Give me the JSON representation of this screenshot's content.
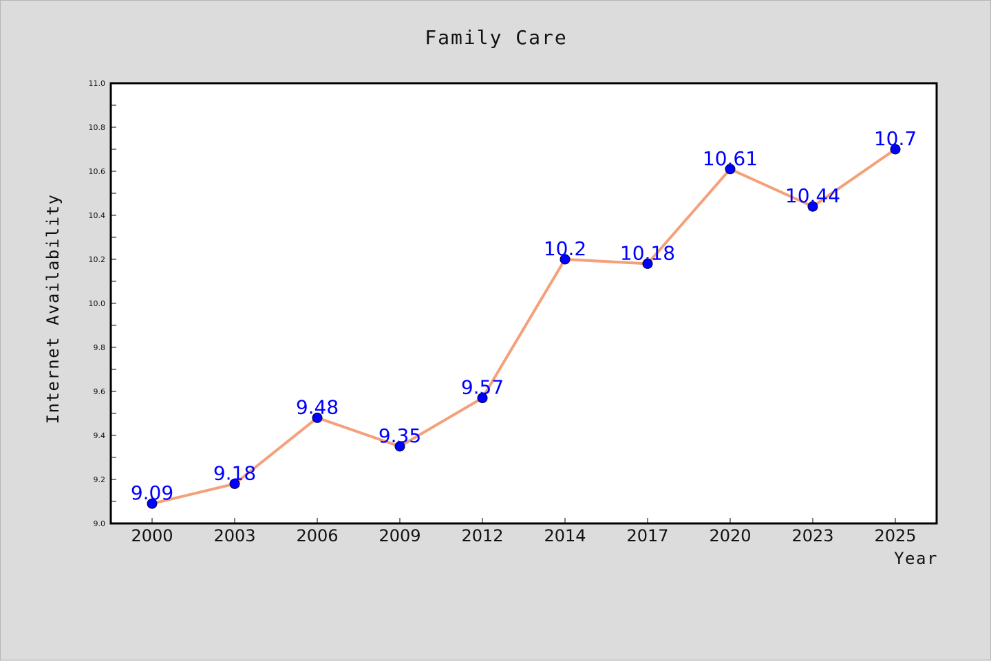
{
  "chart_data": {
    "type": "line",
    "title": "Family Care",
    "xlabel": "Year",
    "ylabel": "Internet Availability",
    "categories": [
      "2000",
      "2003",
      "2006",
      "2009",
      "2012",
      "2014",
      "2017",
      "2020",
      "2023",
      "2025"
    ],
    "series": [
      {
        "values": [
          9.09,
          9.18,
          9.48,
          9.35,
          9.57,
          10.2,
          10.18,
          10.61,
          10.44,
          10.7
        ]
      }
    ],
    "data_labels": [
      "9.09",
      "9.18",
      "9.48",
      "9.35",
      "9.57",
      "10.2",
      "10.18",
      "10.61",
      "10.44",
      "10.7"
    ],
    "ylim": [
      9.0,
      11.0
    ],
    "yticks": [
      "9.0",
      "9.2",
      "9.4",
      "9.6",
      "9.8",
      "10.0",
      "10.2",
      "10.4",
      "10.6",
      "10.8",
      "11.0"
    ],
    "grid": false,
    "legend": "none",
    "colors": {
      "background": "#dcdcdc",
      "plot_background": "#ffffff",
      "line": "#f4a07a",
      "marker": "#0000ff",
      "data_label": "#0000ff"
    }
  }
}
